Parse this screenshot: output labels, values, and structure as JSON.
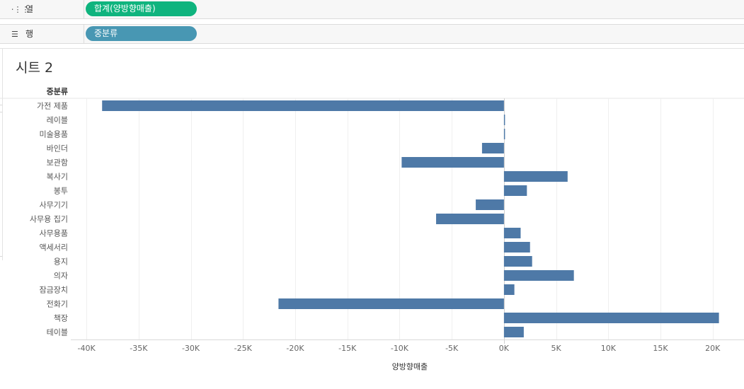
{
  "shelves": {
    "columns": {
      "label": "열",
      "pill": "합계(양방향매출)",
      "pill_color": "#0fb47e"
    },
    "rows": {
      "label": "행",
      "pill": "중분류",
      "pill_color": "#4897b3"
    }
  },
  "sheet": {
    "title": "시트 2"
  },
  "chart_data": {
    "type": "bar",
    "orientation": "horizontal",
    "row_header": "중분류",
    "categories": [
      "가전 제품",
      "레이블",
      "미술용품",
      "바인더",
      "보관함",
      "복사기",
      "봉투",
      "사무기기",
      "사무용 집기",
      "사무용품",
      "액세서리",
      "용지",
      "의자",
      "잠금장치",
      "전화기",
      "책장",
      "테이블"
    ],
    "values": [
      -38500,
      80,
      80,
      -2100,
      -9800,
      6100,
      2200,
      -2700,
      -6500,
      1600,
      2500,
      2700,
      6700,
      1000,
      -21600,
      20600,
      1900
    ],
    "xlabel": "양방향매출",
    "xlim": [
      -41500,
      23000
    ],
    "xticks": [
      -40000,
      -35000,
      -30000,
      -25000,
      -20000,
      -15000,
      -10000,
      -5000,
      0,
      5000,
      10000,
      15000,
      20000
    ],
    "xtick_labels": [
      "-40K",
      "-35K",
      "-30K",
      "-25K",
      "-20K",
      "-15K",
      "-10K",
      "-5K",
      "0K",
      "5K",
      "10K",
      "15K",
      "20K"
    ],
    "bar_color": "#4e79a7",
    "grid": true
  }
}
